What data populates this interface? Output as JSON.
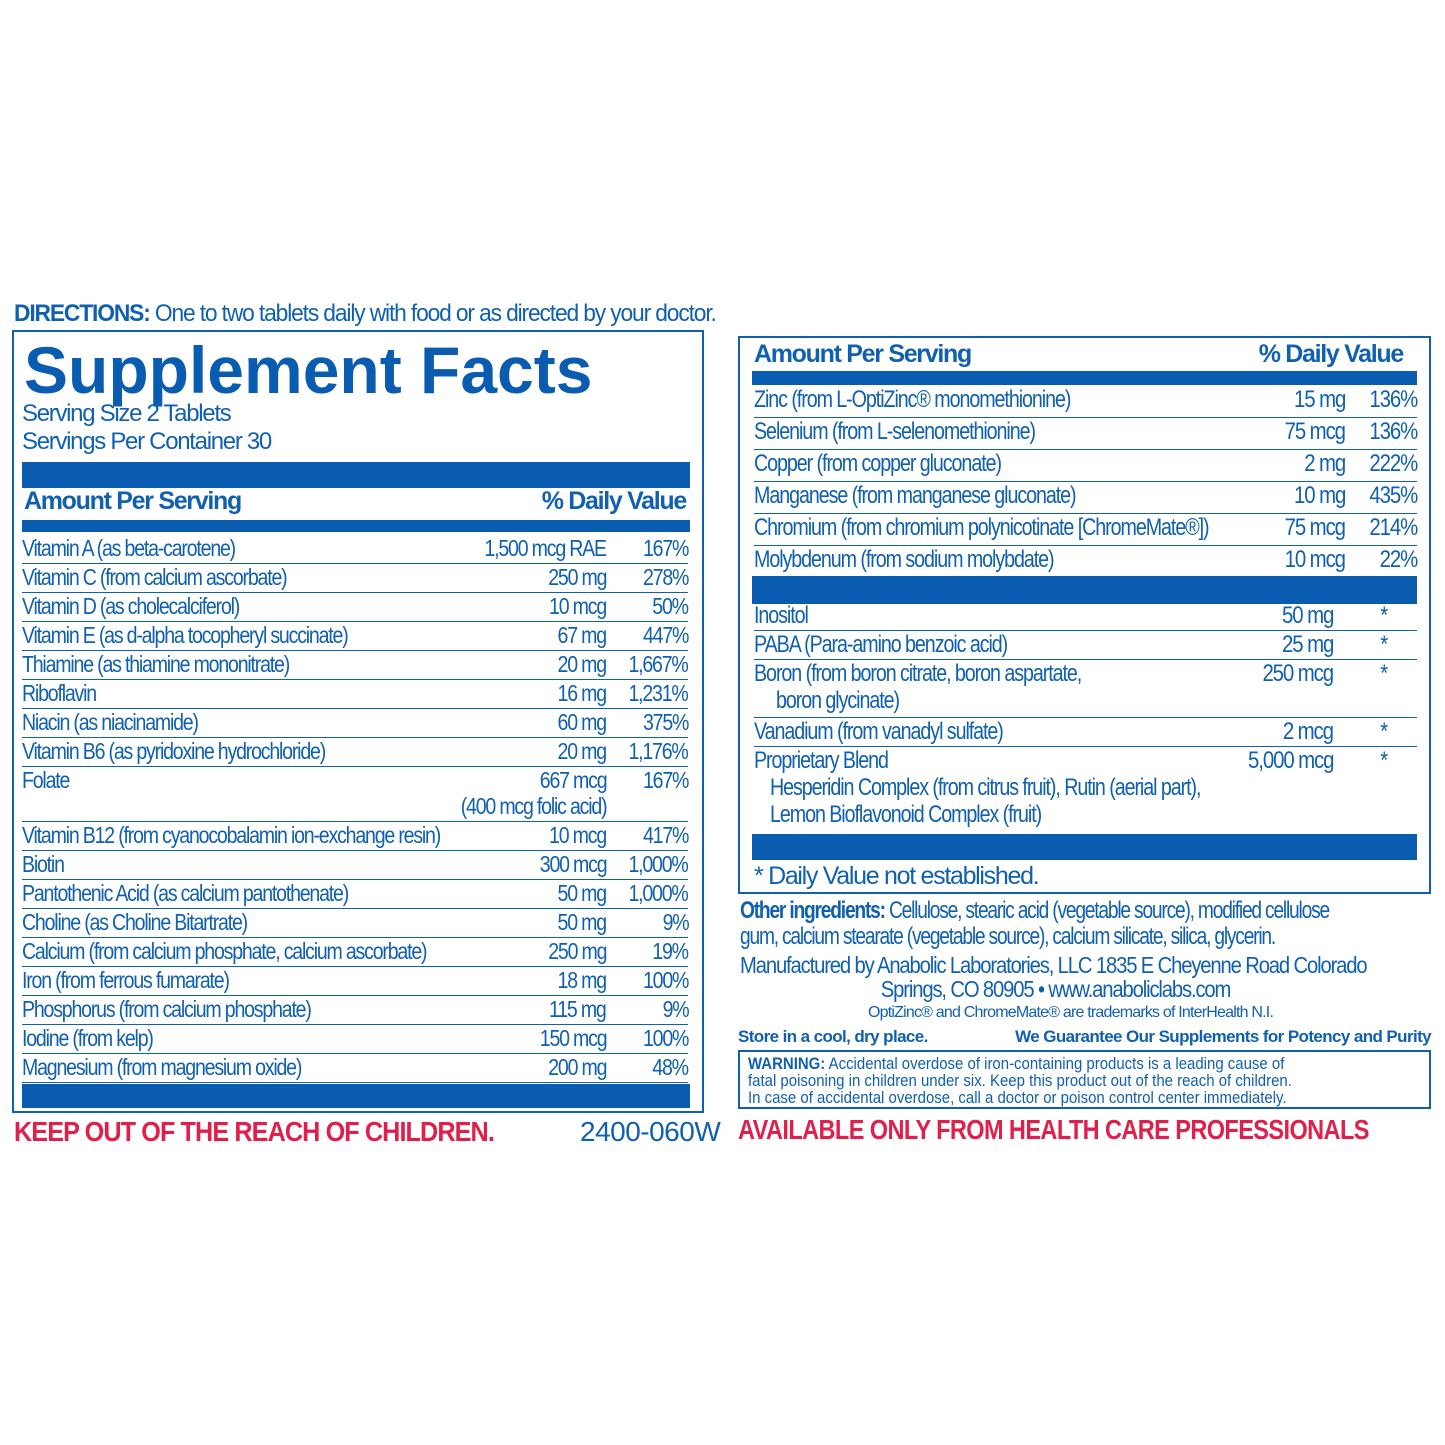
{
  "directions": {
    "label": "DIRECTIONS:",
    "text": "One to two tablets daily with food or as directed by your doctor."
  },
  "facts": {
    "title": "Supplement Facts",
    "serving_size": "Serving Size 2 Tablets",
    "servings_per_container": "Servings Per Container  30",
    "header_amount": "Amount Per Serving",
    "header_dv": "% Daily Value",
    "rows": [
      {
        "name": "Vitamin A (as beta-carotene)",
        "amount": "1,500 mcg RAE",
        "dv": "167%"
      },
      {
        "name": "Vitamin C (from calcium ascorbate)",
        "amount": "250 mg",
        "dv": "278%"
      },
      {
        "name": "Vitamin D (as cholecalciferol)",
        "amount": "10 mcg",
        "dv": "50%"
      },
      {
        "name": "Vitamin E (as d-alpha tocopheryl succinate)",
        "amount": "67 mg",
        "dv": "447%"
      },
      {
        "name": "Thiamine (as thiamine mononitrate)",
        "amount": "20 mg",
        "dv": "1,667%"
      },
      {
        "name": "Riboflavin",
        "amount": "16 mg",
        "dv": "1,231%"
      },
      {
        "name": "Niacin (as niacinamide)",
        "amount": "60 mg",
        "dv": "375%"
      },
      {
        "name": "Vitamin B6 (as pyridoxine hydrochloride)",
        "amount": "20 mg",
        "dv": "1,176%"
      },
      {
        "name": "Folate",
        "amount": "667 mcg",
        "dv": "167%",
        "sub": "(400 mcg folic acid)"
      },
      {
        "name": "Vitamin B12 (from cyanocobalamin ion-exchange resin)",
        "amount": "10 mcg",
        "dv": "417%"
      },
      {
        "name": "Biotin",
        "amount": "300 mcg",
        "dv": "1,000%"
      },
      {
        "name": "Pantothenic Acid (as calcium pantothenate)",
        "amount": "50 mg",
        "dv": "1,000%"
      },
      {
        "name": "Choline (as Choline Bitartrate)",
        "amount": "50 mg",
        "dv": "9%"
      },
      {
        "name": "Calcium (from calcium phosphate, calcium ascorbate)",
        "amount": "250 mg",
        "dv": "19%"
      },
      {
        "name": "Iron (from ferrous fumarate)",
        "amount": "18 mg",
        "dv": "100%"
      },
      {
        "name": "Phosphorus (from calcium phosphate)",
        "amount": "115 mg",
        "dv": "9%"
      },
      {
        "name": "Iodine (from kelp)",
        "amount": "150 mcg",
        "dv": "100%"
      },
      {
        "name": "Magnesium (from magnesium oxide)",
        "amount": "200 mg",
        "dv": "48%"
      }
    ]
  },
  "continued": {
    "header_amount": "Amount Per Serving",
    "header_dv": "% Daily Value",
    "minerals": [
      {
        "name": "Zinc (from L-OptiZinc® monomethionine)",
        "amount": "15 mg",
        "dv": "136%"
      },
      {
        "name": "Selenium (from L-selenomethionine)",
        "amount": "75 mcg",
        "dv": "136%"
      },
      {
        "name": "Copper (from copper gluconate)",
        "amount": "2 mg",
        "dv": "222%"
      },
      {
        "name": "Manganese (from manganese gluconate)",
        "amount": "10 mg",
        "dv": "435%"
      },
      {
        "name": "Chromium (from chromium polynicotinate [ChromeMate®])",
        "amount": "75 mcg",
        "dv": "214%"
      },
      {
        "name": "Molybdenum (from sodium molybdate)",
        "amount": "10 mcg",
        "dv": "22%"
      }
    ],
    "others": [
      {
        "name": "Inositol",
        "amount": "50 mg",
        "dv": "*"
      },
      {
        "name": "PABA (Para-amino benzoic acid)",
        "amount": "25 mg",
        "dv": "*"
      },
      {
        "name": "Boron (from boron citrate, boron aspartate,",
        "sub": "boron glycinate)",
        "amount": "250 mcg",
        "dv": "*"
      },
      {
        "name": "Vanadium (from vanadyl sulfate)",
        "amount": "2 mcg",
        "dv": "*"
      },
      {
        "name": "Proprietary Blend",
        "sub": "Hesperidin Complex (from citrus fruit), Rutin (aerial part),",
        "sub2": "Lemon Bioflavonoid Complex (fruit)",
        "amount": "5,000 mcg",
        "dv": "*"
      }
    ],
    "footnote": "* Daily Value not established."
  },
  "other_ingredients": {
    "label": "Other ingredients:",
    "text1": " Cellulose, stearic acid (vegetable source), modified cellulose",
    "text2": "gum, calcium stearate (vegetable source), calcium silicate, silica, glycerin."
  },
  "manufacturer": {
    "line1": "Manufactured by Anabolic Laboratories, LLC 1835 E Cheyenne Road  Colorado",
    "line2": "Springs, CO 80905  • www.anaboliclabs.com"
  },
  "trademarks": "OptiZinc® and ChromeMate® are trademarks of InterHealth N.I.",
  "storage": "Store in a cool, dry place.",
  "guarantee": "We Guarantee Our Supplements for Potency and Purity",
  "warning": {
    "label": "WARNING:",
    "line1": " Accidental overdose of iron-containing products is a leading cause of",
    "line2": "fatal poisoning in children under six.  Keep this product out of the reach of children.",
    "line3": "In case of accidental overdose, call a doctor or poison control center immediately."
  },
  "keep_out": "KEEP OUT OF THE REACH OF CHILDREN.",
  "product_code": "2400-060W",
  "availability": "AVAILABLE ONLY FROM HEALTH CARE PROFESSIONALS",
  "colors": {
    "blue": "#0a5cb0",
    "red": "#e0204a"
  }
}
